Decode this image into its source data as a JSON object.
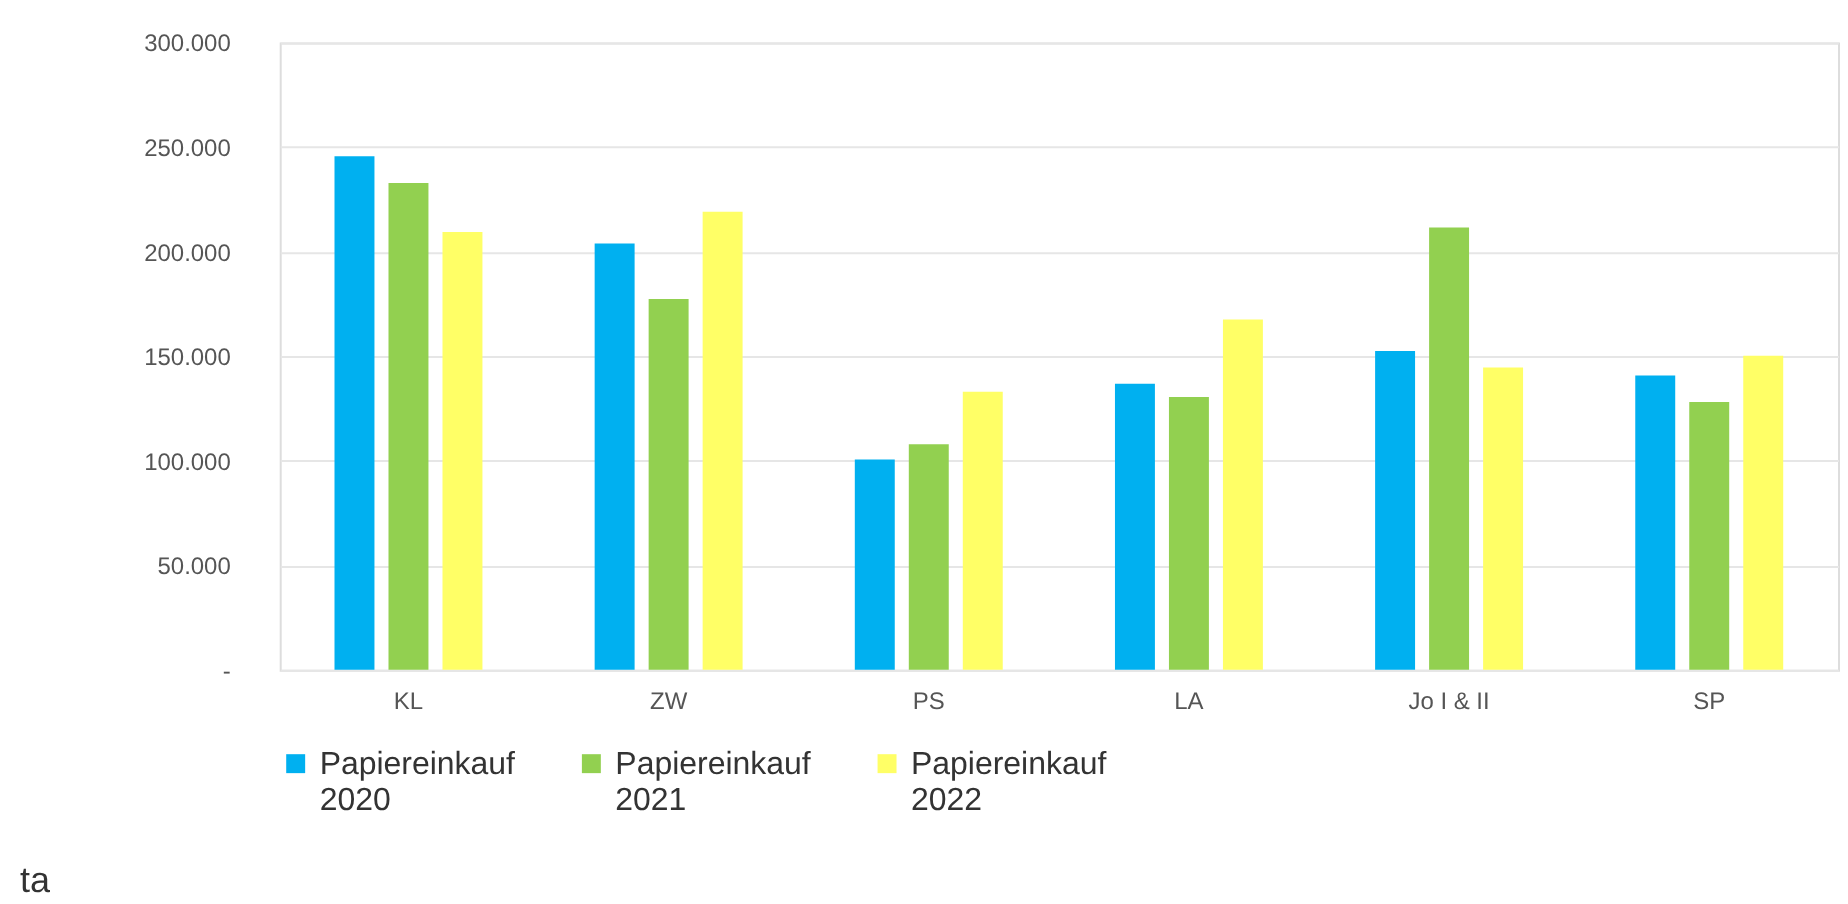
{
  "chart_data": {
    "type": "bar",
    "categories": [
      "KL",
      "ZW",
      "PS",
      "LA",
      "Jo I & II",
      "SP"
    ],
    "series": [
      {
        "name": "Papiereinkauf 2020",
        "color": "#00b0f0",
        "values": [
          245600,
          203800,
          100500,
          136800,
          152400,
          140700
        ]
      },
      {
        "name": "Papiereinkauf 2021",
        "color": "#92d050",
        "values": [
          232800,
          177300,
          107800,
          130400,
          211500,
          128000
        ]
      },
      {
        "name": "Papiereinkauf 2022",
        "color": "#ffff66",
        "values": [
          209300,
          219000,
          133000,
          167500,
          144500,
          150200
        ]
      }
    ],
    "ylim": [
      0,
      300000
    ],
    "yticks": [
      {
        "value": 0,
        "label": "-"
      },
      {
        "value": 50000,
        "label": "50.000"
      },
      {
        "value": 100000,
        "label": "100.000"
      },
      {
        "value": 150000,
        "label": "150.000"
      },
      {
        "value": 200000,
        "label": "200.000"
      },
      {
        "value": 250000,
        "label": "250.000"
      },
      {
        "value": 300000,
        "label": "300.000"
      }
    ],
    "grid": "y",
    "legend": "bottom",
    "annotations": [
      "ta"
    ]
  }
}
